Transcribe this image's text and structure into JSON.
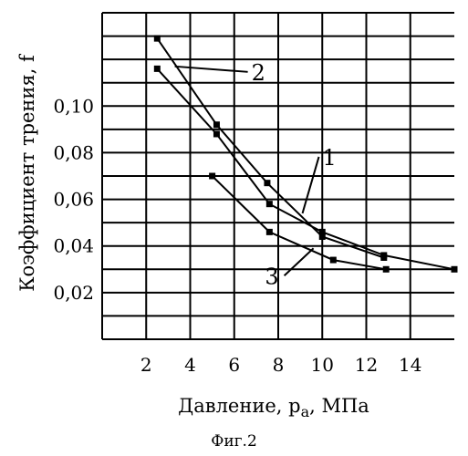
{
  "chart_data": {
    "type": "line",
    "xlabel": "Давление, p",
    "xlabel_sub": "a",
    "xlabel_unit": ", МПа",
    "ylabel": "Коэффициент трения, f",
    "xlim": [
      0,
      16
    ],
    "ylim": [
      0,
      0.14
    ],
    "xticks": [
      2,
      4,
      6,
      8,
      10,
      12,
      14
    ],
    "xtick_labels": [
      "2",
      "4",
      "6",
      "8",
      "10",
      "12",
      "14"
    ],
    "yticks": [
      0.02,
      0.04,
      0.06,
      0.08,
      0.1
    ],
    "ytick_labels": [
      "0,02",
      "0,04",
      "0,06",
      "0,08",
      "0,10"
    ],
    "grid": true,
    "series": [
      {
        "name": "1",
        "x": [
          2.5,
          5.2,
          7.6,
          10.0,
          12.8,
          16.0
        ],
        "y": [
          0.116,
          0.088,
          0.058,
          0.046,
          0.036,
          0.03
        ]
      },
      {
        "name": "2",
        "x": [
          2.5,
          5.2,
          7.5,
          10.0,
          12.8
        ],
        "y": [
          0.129,
          0.092,
          0.067,
          0.044,
          0.035
        ]
      },
      {
        "name": "3",
        "x": [
          5.0,
          7.6,
          10.5,
          12.9
        ],
        "y": [
          0.07,
          0.046,
          0.034,
          0.03
        ]
      }
    ],
    "annotations": [
      {
        "text": "1",
        "series": "1",
        "x": 9.1,
        "y": 0.054
      },
      {
        "text": "2",
        "series": "2",
        "x": 3.3,
        "y": 0.117
      },
      {
        "text": "3",
        "series": "3",
        "x": 9.6,
        "y": 0.039
      }
    ]
  },
  "caption": "Фиг.2"
}
